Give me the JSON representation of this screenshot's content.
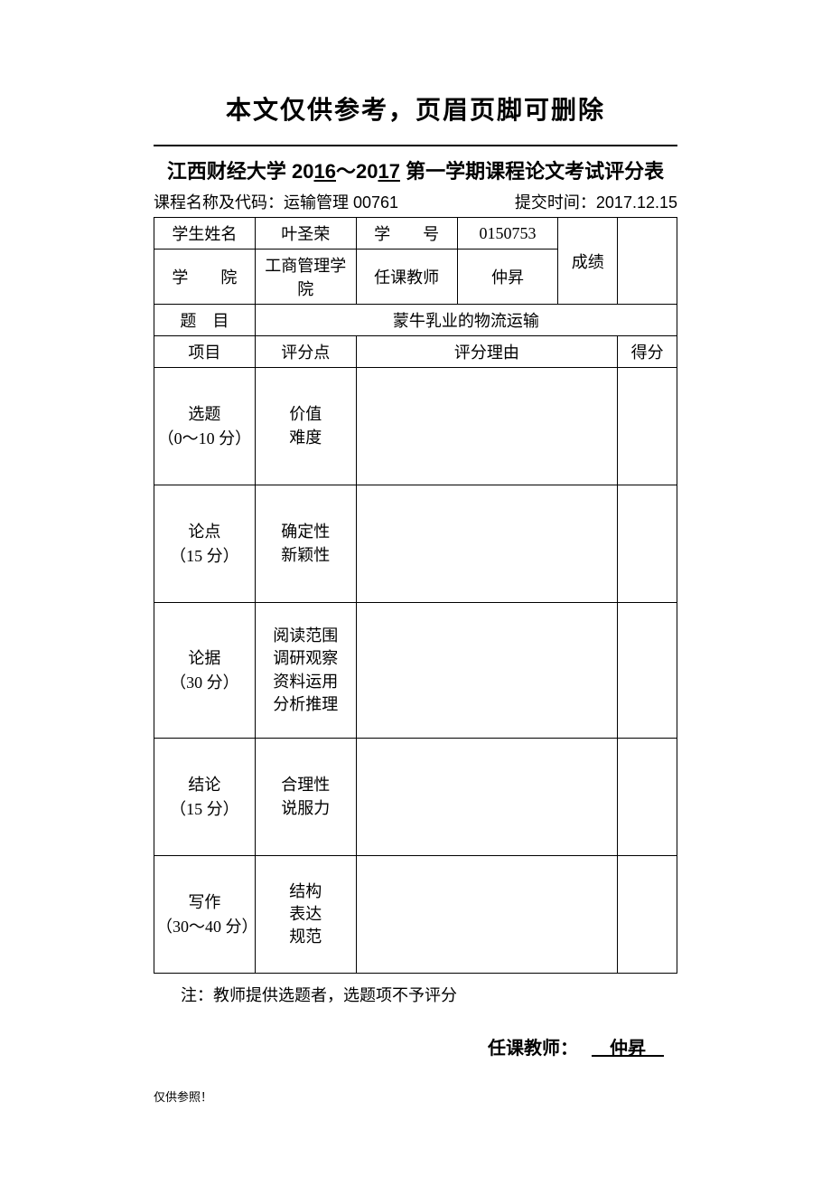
{
  "header": {
    "watermark_text": "本文仅供参考，页眉页脚可删除"
  },
  "title": {
    "prefix": "江西财经大学 20",
    "year1": "16",
    "tilde": "～20",
    "year2": "17",
    "suffix": " 第一学期课程论文考试评分表"
  },
  "meta": {
    "course_label": "课程名称及代码：",
    "course_value": "运输管理 00761",
    "submit_label": "提交时间：",
    "submit_value": "2017.12.15"
  },
  "info": {
    "student_name_label": "学生姓名",
    "student_name_value": "叶圣荣",
    "student_id_label": "学　　号",
    "student_id_value": "0150753",
    "grade_label": "成绩",
    "college_label": "学　　院",
    "college_value": "工商管理学院",
    "teacher_label": "任课教师",
    "teacher_value": "仲昇",
    "topic_label": "题　目",
    "topic_value": "蒙牛乳业的物流运输"
  },
  "columns": {
    "project": "项目",
    "criteria": "评分点",
    "reason": "评分理由",
    "score": "得分"
  },
  "rows": [
    {
      "project_line1": "选题",
      "project_line2": "（0～10 分）",
      "criteria": "价值\n难度"
    },
    {
      "project_line1": "论点",
      "project_line2": "（15 分）",
      "criteria": "确定性\n新颖性"
    },
    {
      "project_line1": "论据",
      "project_line2": "（30 分）",
      "criteria": "阅读范围\n调研观察\n资料运用\n分析推理"
    },
    {
      "project_line1": "结论",
      "project_line2": "（15 分）",
      "criteria": "合理性\n说服力"
    },
    {
      "project_line1": "写作",
      "project_line2": "（30～40 分）",
      "criteria": "结构\n表达\n规范"
    }
  ],
  "note": "注：教师提供选题者，选题项不予评分",
  "signature": {
    "label": "任课教师：",
    "value": "　仲昇　"
  },
  "footer": "仅供参照！"
}
